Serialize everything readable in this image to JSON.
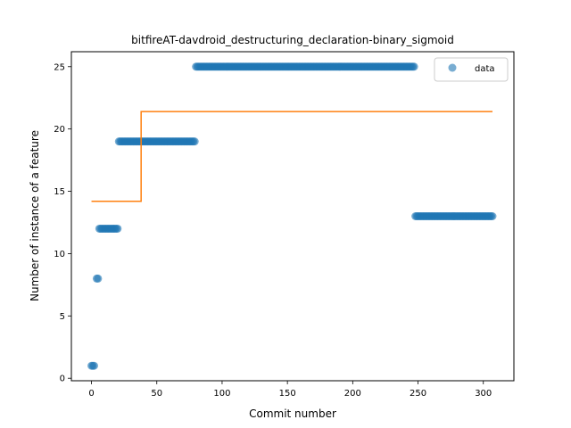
{
  "chart_data": {
    "type": "scatter",
    "title": "bitfireAT-davdroid_destructuring_declaration-binary_sigmoid",
    "xlabel": "Commit number",
    "ylabel": "Number of instance of a feature",
    "xlim": [
      -15.4,
      323.4
    ],
    "ylim": [
      -0.2,
      26.2
    ],
    "xticks": [
      0,
      50,
      100,
      150,
      200,
      250,
      300
    ],
    "yticks": [
      0,
      5,
      10,
      15,
      20,
      25
    ],
    "grid": false,
    "legend": {
      "position": "top-right",
      "entries": [
        "data"
      ]
    },
    "colors": {
      "data": "#1f77b4",
      "fit": "#ff7f0e"
    },
    "series": [
      {
        "name": "data",
        "kind": "scatter",
        "runs": [
          {
            "x_start": 0,
            "x_end": 2,
            "y": 1
          },
          {
            "x_start": 4,
            "x_end": 5,
            "y": 8
          },
          {
            "x_start": 6,
            "x_end": 20,
            "y": 12
          },
          {
            "x_start": 21,
            "x_end": 79,
            "y": 19
          },
          {
            "x_start": 80,
            "x_end": 247,
            "y": 25
          },
          {
            "x_start": 248,
            "x_end": 307,
            "y": 13
          }
        ]
      },
      {
        "kind": "line",
        "x": [
          0,
          38,
          38,
          307
        ],
        "y": [
          14.2,
          14.2,
          21.4,
          21.4
        ]
      }
    ]
  }
}
